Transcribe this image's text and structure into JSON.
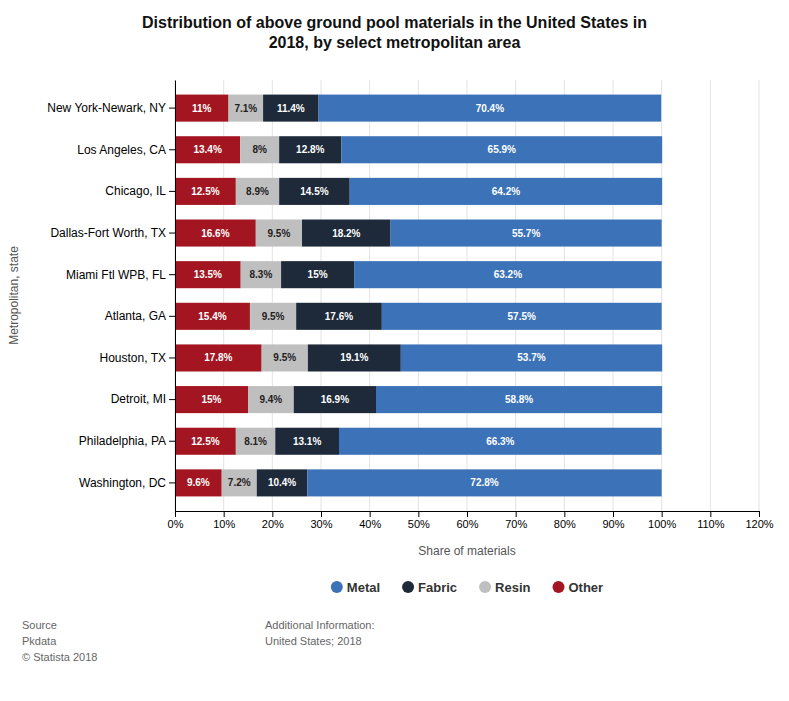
{
  "chart_data": {
    "type": "bar",
    "orientation": "horizontal",
    "stacked": true,
    "data_labels": true,
    "grid": true,
    "title": "Distribution of above ground pool materials in the United States in\n2018, by select metropolitan area",
    "xlabel": "Share of materials",
    "ylabel": "Metropolitan, state",
    "categories": [
      "Washington, DC",
      "Philadelphia, PA",
      "Detroit, MI",
      "Houston, TX",
      "Atlanta, GA",
      "Miami Ftl WPB, FL",
      "Dallas-Fort Worth, TX",
      "Chicago, IL",
      "Los Angeles, CA",
      "New York-Newark, NY"
    ],
    "series": [
      {
        "name": "Other",
        "color": "#a31621",
        "values": [
          9.6,
          12.5,
          15.0,
          17.8,
          15.4,
          13.5,
          16.6,
          12.5,
          13.4,
          11.0
        ],
        "value_labels": [
          "9.6%",
          "12.5%",
          "15%",
          "17.8%",
          "15.4%",
          "13.5%",
          "16.6%",
          "12.5%",
          "13.4%",
          "11%"
        ]
      },
      {
        "name": "Resin",
        "color": "#c0bfbf",
        "values": [
          7.2,
          8.1,
          9.4,
          9.5,
          9.5,
          8.3,
          9.5,
          8.9,
          8.0,
          7.1
        ],
        "value_labels": [
          "7.2%",
          "8.1%",
          "9.4%",
          "9.5%",
          "9.5%",
          "8.3%",
          "9.5%",
          "8.9%",
          "8%",
          "7.1%"
        ]
      },
      {
        "name": "Fabric",
        "color": "#1e2a3a",
        "values": [
          10.4,
          13.1,
          16.9,
          19.1,
          17.6,
          15.0,
          18.2,
          14.5,
          12.8,
          11.4
        ],
        "value_labels": [
          "10.4%",
          "13.1%",
          "16.9%",
          "19.1%",
          "17.6%",
          "15%",
          "18.2%",
          "14.5%",
          "12.8%",
          "11.4%"
        ]
      },
      {
        "name": "Metal",
        "color": "#3b72b8",
        "values": [
          72.8,
          66.3,
          58.8,
          53.7,
          57.5,
          63.2,
          55.7,
          64.2,
          65.9,
          70.4
        ],
        "value_labels": [
          "72.8%",
          "66.3%",
          "58.8%",
          "53.7%",
          "57.5%",
          "63.2%",
          "55.7%",
          "64.2%",
          "65.9%",
          "70.4%"
        ]
      }
    ],
    "xlim": [
      0,
      120
    ],
    "xticks": [
      {
        "value": 0,
        "label": "0%"
      },
      {
        "value": 10,
        "label": "10%"
      },
      {
        "value": 20,
        "label": "20%"
      },
      {
        "value": 30,
        "label": "30%"
      },
      {
        "value": 40,
        "label": "40%"
      },
      {
        "value": 50,
        "label": "50%"
      },
      {
        "value": 60,
        "label": "60%"
      },
      {
        "value": 70,
        "label": "70%"
      },
      {
        "value": 80,
        "label": "80%"
      },
      {
        "value": 90,
        "label": "90%"
      },
      {
        "value": 100,
        "label": "100%"
      },
      {
        "value": 110,
        "label": "110%"
      },
      {
        "value": 120,
        "label": "120%"
      }
    ],
    "annotations": [
      "Source\nPkdata\n© Statista 2018",
      "Additional Information:\nUnited States; 2018"
    ]
  }
}
